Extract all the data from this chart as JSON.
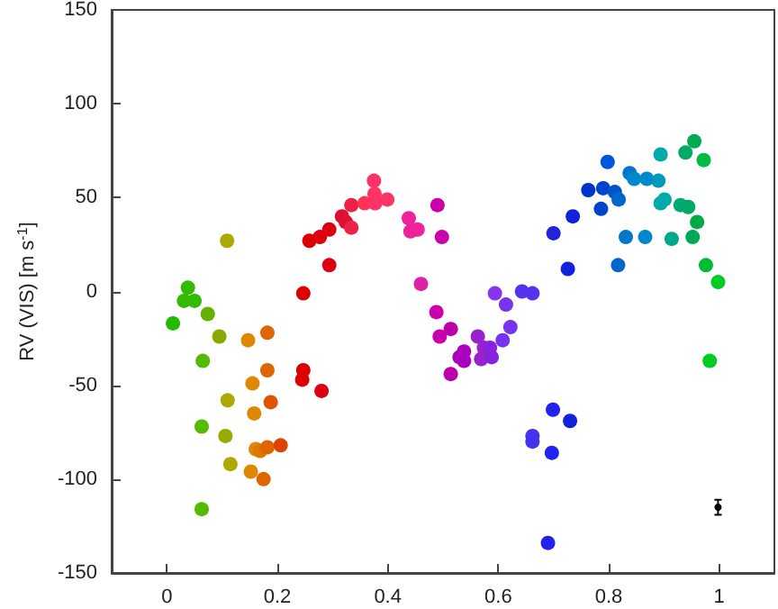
{
  "chart_data": {
    "type": "scatter",
    "ylabel": "RV (VIS) [m s$^{-1}$]",
    "xlim": [
      -0.1,
      1.1
    ],
    "xticks": [
      0,
      0.2,
      0.4,
      0.6,
      0.8,
      1
    ],
    "ylim": [
      -150,
      150
    ],
    "yticks": [
      -150,
      -100,
      -50,
      0,
      50,
      100,
      150
    ],
    "marker": "circle",
    "series": [
      {
        "x": [
          0.011,
          0.031,
          0.038,
          0.05,
          0.063,
          0.063,
          0.065,
          0.074,
          0.095,
          0.106,
          0.109,
          0.11,
          0.115,
          0.147,
          0.152,
          0.155,
          0.158,
          0.161,
          0.169,
          0.175,
          0.182,
          0.182,
          0.182,
          0.188,
          0.206,
          0.245,
          0.247,
          0.247,
          0.258,
          0.277,
          0.28,
          0.294,
          0.294,
          0.317,
          0.324,
          0.334,
          0.334,
          0.358,
          0.375,
          0.376,
          0.377,
          0.399,
          0.438,
          0.441,
          0.454,
          0.46,
          0.488,
          0.49,
          0.494,
          0.498,
          0.514,
          0.514,
          0.53,
          0.538,
          0.538,
          0.563,
          0.569,
          0.574,
          0.585,
          0.588,
          0.594,
          0.608,
          0.614,
          0.622,
          0.643,
          0.662,
          0.662,
          0.662,
          0.69,
          0.697,
          0.699,
          0.7,
          0.726,
          0.73,
          0.735,
          0.763,
          0.786,
          0.79,
          0.798,
          0.811,
          0.817,
          0.818,
          0.831,
          0.838,
          0.846,
          0.866,
          0.869,
          0.89,
          0.894,
          0.894,
          0.901,
          0.914,
          0.93,
          0.939,
          0.944,
          0.952,
          0.955,
          0.96,
          0.972,
          0.976,
          0.983,
          0.998
        ],
        "values": [
          -17,
          -5,
          2,
          -5,
          -72,
          -116,
          -37,
          -12,
          -24,
          -77,
          27,
          -58,
          -92,
          -26,
          -96,
          -49,
          -65,
          -84,
          -85,
          -100,
          -22,
          -42,
          -83,
          -59,
          -82,
          -47,
          -42,
          -1,
          27,
          29,
          -53,
          33,
          14,
          40,
          37,
          46,
          34,
          47,
          59,
          52,
          47,
          49,
          39,
          32,
          33,
          4,
          -11,
          46,
          -24,
          29,
          -20,
          -44,
          -35,
          -32,
          -37,
          -24,
          -36,
          -30,
          -30,
          -35,
          -1,
          -26,
          -7,
          -19,
          0,
          -1,
          -77,
          -80,
          -134,
          -86,
          -63,
          31,
          12,
          -69,
          40,
          54,
          44,
          55,
          69,
          53,
          14,
          49,
          29,
          63,
          60,
          29,
          60,
          59,
          73,
          47,
          49,
          28,
          46,
          74,
          45,
          29,
          80,
          37,
          70,
          14,
          -37,
          5
        ],
        "colors": [
          "#22bb00",
          "#33bb00",
          "#33bb00",
          "#33bb00",
          "#55bb00",
          "#55bb00",
          "#55bb00",
          "#66b000",
          "#88aa00",
          "#99aa00",
          "#aaaa00",
          "#aaaa00",
          "#aaaa00",
          "#dd8800",
          "#dd8800",
          "#dd8800",
          "#dd8800",
          "#dd8800",
          "#dd7700",
          "#dd6600",
          "#dd6600",
          "#dd6600",
          "#dd6600",
          "#dd5500",
          "#dd4400",
          "#dd0000",
          "#dd0000",
          "#dd0000",
          "#dd0000",
          "#dd0011",
          "#dd0011",
          "#dd0011",
          "#dd0011",
          "#dd1133",
          "#dd1133",
          "#ee2244",
          "#ee2244",
          "#ff3355",
          "#ff3366",
          "#ff3366",
          "#ff3366",
          "#ff3366",
          "#ee2299",
          "#ee2299",
          "#ee2299",
          "#dd22aa",
          "#cc00aa",
          "#cc00aa",
          "#cc00aa",
          "#cc00aa",
          "#bb00aa",
          "#bb00aa",
          "#aa00bb",
          "#aa00bb",
          "#aa00bb",
          "#9922cc",
          "#9922cc",
          "#9922cc",
          "#8822dd",
          "#8822dd",
          "#8833ee",
          "#7733ee",
          "#7733ee",
          "#7733ee",
          "#5533ee",
          "#5533ee",
          "#4433ee",
          "#4433ee",
          "#2222ee",
          "#2222ee",
          "#2222ee",
          "#2222dd",
          "#1122dd",
          "#1122dd",
          "#1122dd",
          "#0033cc",
          "#0044cc",
          "#0044cc",
          "#0055dd",
          "#0055cc",
          "#0066cc",
          "#0066cc",
          "#0077cc",
          "#0077cc",
          "#0088cc",
          "#0088cc",
          "#0088cc",
          "#0099bb",
          "#00aaaa",
          "#00aaaa",
          "#00aaaa",
          "#00aa88",
          "#00aa77",
          "#00aa66",
          "#00aa66",
          "#00aa55",
          "#00aa55",
          "#00aa44",
          "#00bb44",
          "#00bb33",
          "#00cc22",
          "#00cc22"
        ]
      },
      {
        "x": [
          0.998
        ],
        "values": [
          -115
        ],
        "errors": [
          4
        ],
        "color": "#000000"
      }
    ]
  }
}
